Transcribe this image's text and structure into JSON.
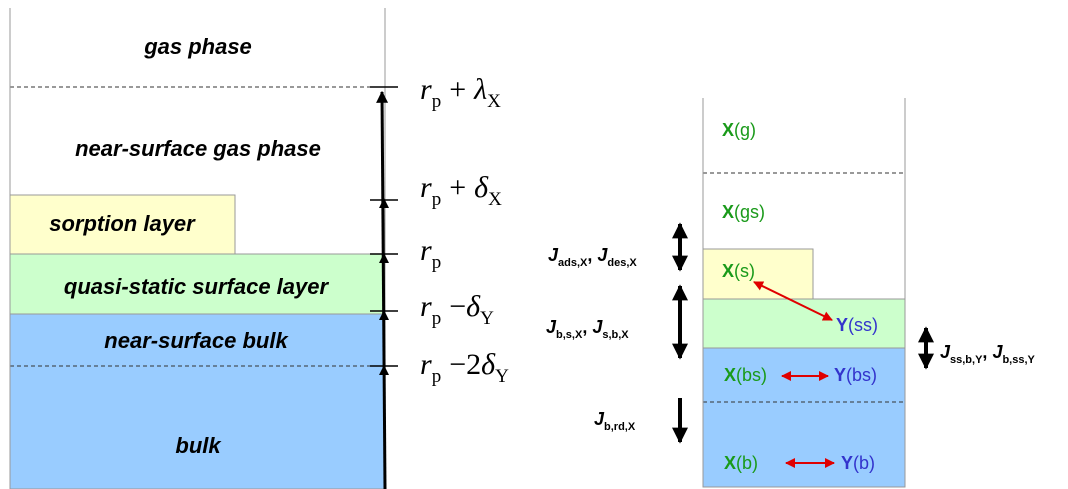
{
  "left_panel": {
    "regions": {
      "gas_phase": "gas phase",
      "near_surface_gas_phase": "near-surface gas phase",
      "sorption_layer": "sorption layer",
      "quasi_static_surface_layer": "quasi-static surface layer",
      "near_surface_bulk": "near-surface bulk",
      "bulk": "bulk"
    },
    "radius_labels": {
      "r_plus_lambda": {
        "base": "r",
        "sub": "p",
        "op": "+",
        "symbol": "λ",
        "symsub": "X"
      },
      "r_plus_delta": {
        "base": "r",
        "sub": "p",
        "op": "+",
        "symbol": "δ",
        "symsub": "X"
      },
      "r": {
        "base": "r",
        "sub": "p"
      },
      "r_minus_delta": {
        "base": "r",
        "sub": "p",
        "op": "−",
        "symbol": "δ",
        "symsub": "Y"
      },
      "r_minus_2delta": {
        "base": "r",
        "sub": "p",
        "op": "−",
        "coef": "2",
        "symbol": "δ",
        "symsub": "Y"
      }
    }
  },
  "right_panel": {
    "species": {
      "xg": {
        "sym": "X",
        "state": "(g)"
      },
      "xgs": {
        "sym": "X",
        "state": "(gs)"
      },
      "xs": {
        "sym": "X",
        "state": "(s)"
      },
      "yss": {
        "sym": "Y",
        "state": "(ss)"
      },
      "xbs": {
        "sym": "X",
        "state": "(bs)"
      },
      "ybs": {
        "sym": "Y",
        "state": "(bs)"
      },
      "xb": {
        "sym": "X",
        "state": "(b)"
      },
      "yb": {
        "sym": "Y",
        "state": "(b)"
      }
    },
    "fluxes": {
      "ads_des": {
        "j1": "J",
        "s1": "ads,X",
        "sep": ", ",
        "j2": "J",
        "s2": "des,X"
      },
      "bs_sb": {
        "j1": "J",
        "s1": "b,s,X",
        "sep": ", ",
        "j2": "J",
        "s2": "s,b,X"
      },
      "ssb_bss": {
        "j1": "J",
        "s1": "ss,b,Y",
        "sep": ", ",
        "j2": "J",
        "s2": "b,ss,Y"
      },
      "brd": {
        "j1": "J",
        "s1": "b,rd,X"
      }
    }
  },
  "colors": {
    "sorption_fill": "#ffffcc",
    "surface_fill": "#ccffcc",
    "bulk_fill": "#99ccff",
    "x_species": "#1a9a1a",
    "y_species": "#3333cc",
    "red_arrow": "#e00000"
  }
}
